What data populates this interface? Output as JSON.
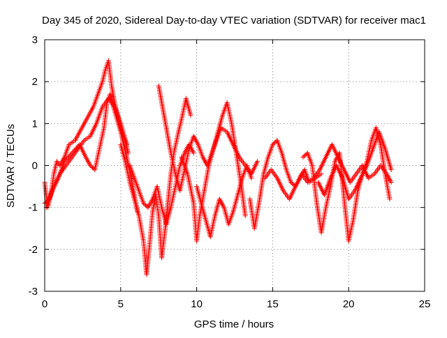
{
  "chart_data": {
    "type": "scatter",
    "title": "Day 345 of 2020, Sidereal Day-to-day VTEC variation (SDTVAR) for receiver mac1",
    "xlabel": "GPS time / hours",
    "ylabel": "SDTVAR / TECUs",
    "xlim": [
      0,
      25
    ],
    "ylim": [
      -3,
      3
    ],
    "xticks": [
      0,
      5,
      10,
      15,
      20,
      25
    ],
    "yticks": [
      -3,
      -2,
      -1,
      0,
      1,
      2,
      3
    ],
    "grid": true,
    "marker": "+",
    "series": [
      {
        "name": "SDTVAR",
        "color": "#ff0000",
        "x": [
          0.0,
          0.2,
          0.4,
          0.6,
          0.8,
          1.0,
          1.3,
          1.6,
          2.0,
          2.3,
          2.6,
          2.9,
          3.2,
          3.5,
          3.8,
          4.0,
          4.2,
          4.4,
          4.6,
          4.8,
          5.0,
          5.3,
          5.5
        ],
        "y": [
          -0.4,
          -1.0,
          -0.7,
          -0.2,
          0.1,
          0.0,
          0.2,
          0.5,
          0.6,
          0.8,
          1.0,
          1.2,
          1.4,
          1.7,
          2.0,
          2.3,
          2.5,
          1.9,
          1.5,
          1.2,
          0.9,
          0.6,
          0.3
        ]
      },
      {
        "name": "SDTVAR",
        "color": "#ff0000",
        "x": [
          0.0,
          0.3,
          0.6,
          1.0,
          1.4,
          1.8,
          2.2,
          2.6,
          3.0,
          3.4,
          3.8,
          4.2,
          4.6,
          5.0,
          5.4
        ],
        "y": [
          -0.9,
          -0.8,
          -0.5,
          -0.2,
          0.0,
          0.2,
          0.4,
          0.6,
          0.7,
          1.0,
          1.4,
          1.6,
          1.4,
          1.0,
          0.5
        ]
      },
      {
        "name": "SDTVAR",
        "color": "#ff0000",
        "x": [
          0.1,
          0.5,
          0.9,
          1.3,
          1.8,
          2.3,
          2.7,
          3.0,
          3.3,
          3.6,
          3.9,
          4.1,
          4.3,
          4.6,
          5.0,
          5.4,
          5.8,
          6.1
        ],
        "y": [
          -1.0,
          -0.6,
          -0.3,
          0.1,
          0.3,
          0.5,
          0.2,
          0.0,
          -0.1,
          0.4,
          0.9,
          1.5,
          1.7,
          1.3,
          0.8,
          0.2,
          -0.5,
          -1.1
        ]
      },
      {
        "name": "SDTVAR",
        "color": "#ff0000",
        "x": [
          5.0,
          5.3,
          5.6,
          5.9,
          6.2,
          6.5,
          6.7,
          6.9,
          7.1,
          7.3,
          7.5,
          7.7,
          7.9,
          8.1,
          8.3,
          8.5,
          8.8,
          9.0,
          9.3,
          9.6
        ],
        "y": [
          0.5,
          0.1,
          -0.4,
          -0.8,
          -1.2,
          -1.8,
          -2.6,
          -1.9,
          -1.1,
          -0.7,
          -1.2,
          -2.2,
          -1.6,
          -0.9,
          -0.2,
          0.3,
          0.8,
          1.1,
          1.6,
          1.2
        ]
      },
      {
        "name": "SDTVAR",
        "color": "#ff0000",
        "x": [
          5.6,
          5.9,
          6.2,
          6.5,
          6.8,
          7.1,
          7.4,
          7.7,
          8.0,
          8.3,
          8.6,
          8.9,
          9.2,
          9.5,
          9.8
        ],
        "y": [
          0.0,
          -0.3,
          -0.6,
          -0.9,
          -1.0,
          -0.8,
          -0.5,
          -1.0,
          -1.4,
          -1.0,
          -0.5,
          0.0,
          0.3,
          0.5,
          0.3
        ]
      },
      {
        "name": "SDTVAR",
        "color": "#ff0000",
        "x": [
          7.5,
          7.7,
          7.9,
          8.1,
          8.3,
          8.6,
          8.9,
          9.2,
          9.5,
          9.8,
          10.1,
          10.4,
          10.7,
          11.0,
          11.3,
          11.6,
          12.0,
          12.4,
          12.8,
          13.2,
          13.6,
          14.0
        ],
        "y": [
          1.9,
          1.5,
          1.1,
          0.7,
          0.3,
          -0.2,
          -0.6,
          -0.1,
          0.4,
          0.7,
          0.5,
          0.2,
          0.0,
          0.3,
          0.6,
          0.9,
          0.8,
          0.5,
          0.2,
          0.0,
          -0.2,
          0.1
        ]
      },
      {
        "name": "SDTVAR",
        "color": "#ff0000",
        "x": [
          9.0,
          9.4,
          9.8,
          10.0,
          10.2,
          10.5,
          10.8,
          11.1,
          11.4,
          11.7,
          12.0,
          12.3,
          12.6,
          12.9,
          13.2
        ],
        "y": [
          0.2,
          -0.2,
          -0.9,
          -1.8,
          -1.2,
          -0.6,
          0.0,
          0.4,
          0.8,
          1.2,
          1.5,
          1.0,
          0.3,
          -0.4,
          -1.2
        ]
      },
      {
        "name": "SDTVAR",
        "color": "#ff0000",
        "x": [
          10.0,
          10.3,
          10.6,
          10.9,
          11.2,
          11.5,
          11.8,
          12.1,
          12.4,
          12.7,
          13.0,
          13.3,
          13.6
        ],
        "y": [
          -0.5,
          -0.9,
          -1.3,
          -1.7,
          -1.2,
          -0.8,
          -1.0,
          -1.4,
          -1.1,
          -0.7,
          -0.3,
          0.0,
          -0.3
        ]
      },
      {
        "name": "SDTVAR",
        "color": "#ff0000",
        "x": [
          13.5,
          13.8,
          14.1,
          14.4,
          14.7,
          15.0,
          15.3,
          15.6,
          15.9,
          16.2,
          16.5,
          16.8,
          17.1,
          17.4,
          17.8,
          18.2
        ],
        "y": [
          -0.8,
          -1.5,
          -0.9,
          -0.2,
          0.2,
          0.5,
          0.6,
          0.3,
          -0.1,
          -0.4,
          -0.5,
          -0.3,
          -0.1,
          -0.4,
          -0.3,
          -0.2
        ]
      },
      {
        "name": "SDTVAR",
        "color": "#ff0000",
        "x": [
          14.5,
          14.9,
          15.3,
          15.7,
          16.1,
          16.5,
          16.9,
          17.3,
          17.7,
          18.1,
          18.5,
          18.9,
          19.3,
          19.7,
          20.1,
          20.5,
          20.9,
          21.3,
          21.7,
          22.1,
          22.5,
          22.8
        ],
        "y": [
          -0.3,
          -0.1,
          -0.3,
          -0.6,
          -0.8,
          -0.5,
          -0.2,
          -0.4,
          -0.3,
          -0.1,
          0.2,
          0.5,
          0.2,
          -0.1,
          -0.4,
          -0.2,
          0.0,
          -0.3,
          -0.2,
          0.0,
          -0.2,
          -0.4
        ]
      },
      {
        "name": "SDTVAR",
        "color": "#ff0000",
        "x": [
          17.0,
          17.3,
          17.6,
          17.9,
          18.2,
          18.5,
          18.8,
          19.1,
          19.4,
          19.7,
          20.0,
          20.3,
          20.6,
          20.9,
          21.2,
          21.5,
          21.8,
          22.1,
          22.4,
          22.7
        ],
        "y": [
          0.2,
          0.3,
          0.0,
          -0.9,
          -1.6,
          -1.0,
          -0.5,
          0.1,
          0.3,
          -0.8,
          -1.8,
          -1.3,
          -0.6,
          -0.2,
          0.1,
          0.6,
          0.9,
          0.5,
          -0.2,
          -0.8
        ]
      },
      {
        "name": "SDTVAR",
        "color": "#ff0000",
        "x": [
          18.0,
          18.4,
          18.8,
          19.2,
          19.6,
          20.0,
          20.4,
          20.8,
          21.2,
          21.6,
          22.0,
          22.4,
          22.8
        ],
        "y": [
          -0.4,
          -0.7,
          -0.3,
          0.0,
          -0.3,
          -0.8,
          -0.6,
          -0.3,
          0.0,
          0.4,
          0.8,
          0.4,
          -0.1
        ]
      }
    ]
  }
}
